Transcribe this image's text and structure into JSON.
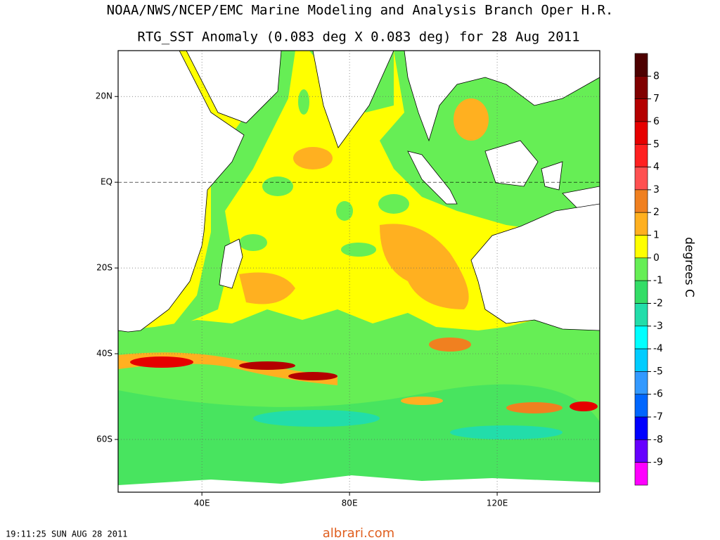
{
  "title": "NOAA/NWS/NCEP/EMC Marine Modeling and Analysis Branch Oper H.R.",
  "subtitle": "RTG_SST Anomaly (0.083 deg X 0.083 deg) for 28 Aug 2011",
  "map": {
    "xlim": [
      17.3,
      147.8
    ],
    "ylim": [
      -72.3,
      30.7
    ],
    "xticks": [
      {
        "value": 40,
        "label": "40E"
      },
      {
        "value": 80,
        "label": "80E"
      },
      {
        "value": 120,
        "label": "120E"
      }
    ],
    "yticks": [
      {
        "value": 20,
        "label": "20N"
      },
      {
        "value": 0,
        "label": "EQ"
      },
      {
        "value": -20,
        "label": "20S"
      },
      {
        "value": -40,
        "label": "40S"
      },
      {
        "value": -60,
        "label": "60S"
      }
    ],
    "grid": true
  },
  "colorbar": {
    "label": "degrees C",
    "ticks": [
      8,
      7,
      6,
      5,
      4,
      3,
      2,
      1,
      0,
      -1,
      -2,
      -3,
      -4,
      -5,
      -6,
      -7,
      -8,
      -9
    ],
    "colors": [
      "#4d0000",
      "#800000",
      "#b40000",
      "#e60000",
      "#ff2020",
      "#ff5050",
      "#f08020",
      "#ffb020",
      "#ffff00",
      "#66ee55",
      "#33dd66",
      "#22ddaa",
      "#00ffff",
      "#00ccff",
      "#3399ff",
      "#0066ff",
      "#0000ff",
      "#6600ff",
      "#ff00ff"
    ]
  },
  "timestamp": "19:11:25  SUN AUG 28 2011",
  "watermark": "albrari.com"
}
